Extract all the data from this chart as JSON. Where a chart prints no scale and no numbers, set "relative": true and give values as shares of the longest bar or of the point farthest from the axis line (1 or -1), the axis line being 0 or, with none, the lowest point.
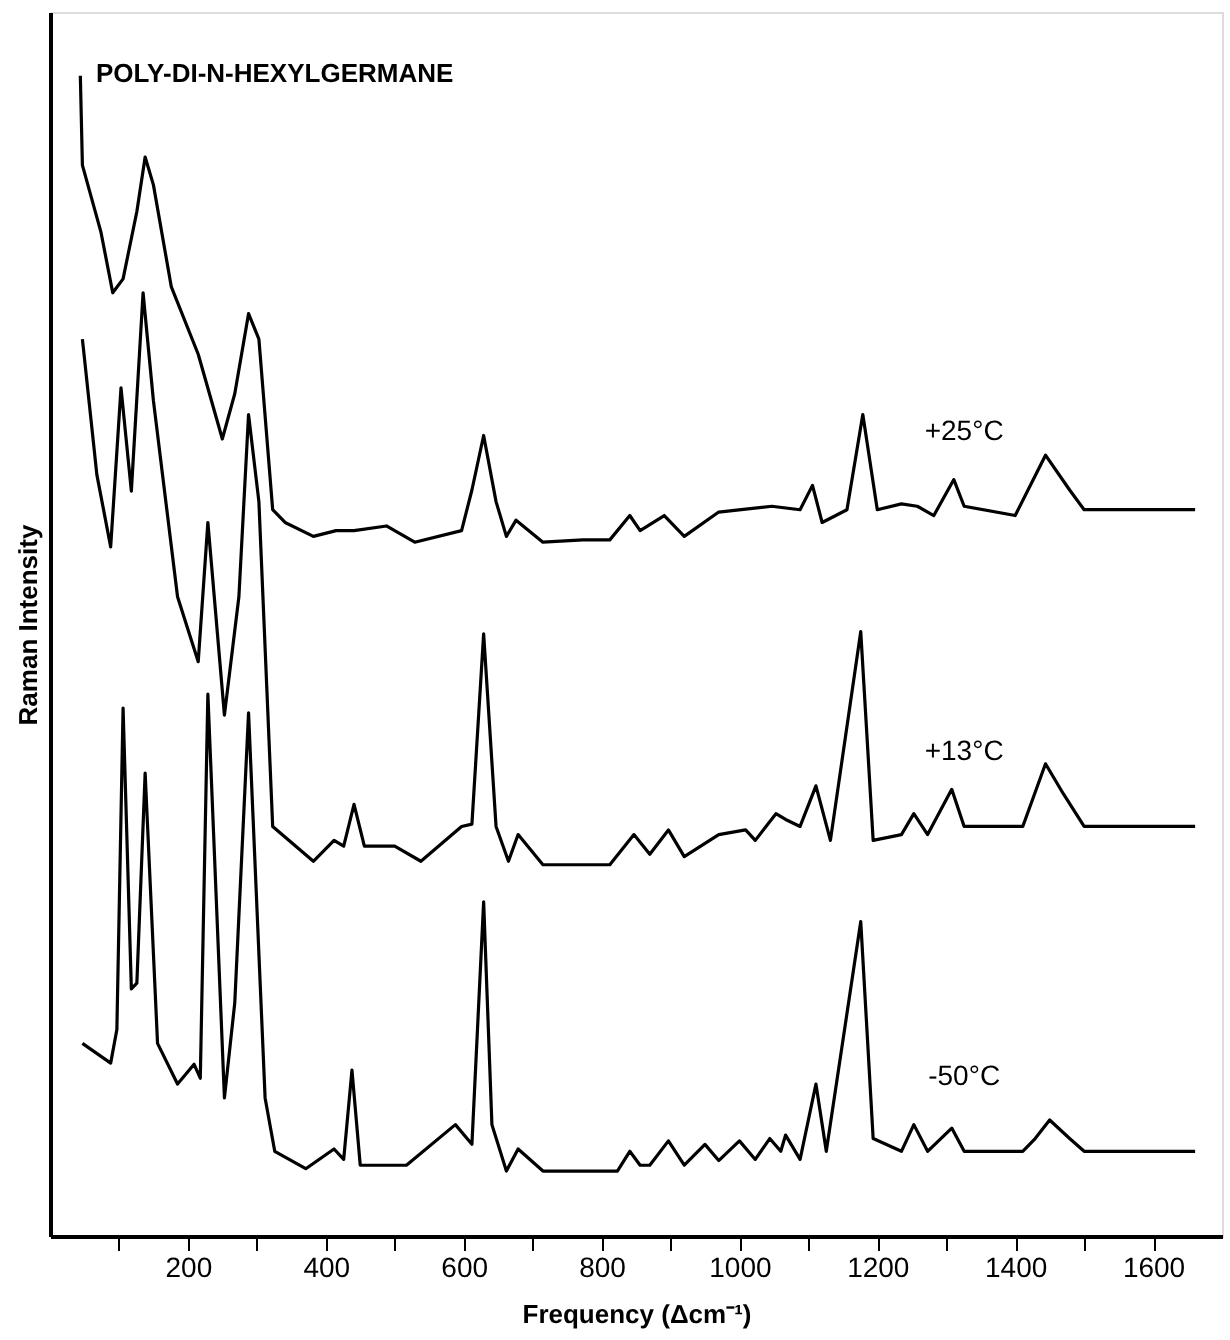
{
  "chart_data": {
    "type": "line",
    "title": "POLY-DI-N-HEXYLGERMANE",
    "xlabel": "Frequency (Δcm⁻¹)",
    "ylabel": "Raman Intensity",
    "relative": true,
    "grid": false,
    "marker": "none",
    "line_style": "solid",
    "xlim": [
      0,
      1700
    ],
    "xticks": [
      {
        "value": 100,
        "label": null
      },
      200,
      {
        "value": 300,
        "label": null
      },
      400,
      {
        "value": 500,
        "label": null
      },
      600,
      {
        "value": 700,
        "label": null
      },
      800,
      {
        "value": 900,
        "label": null
      },
      1000,
      {
        "value": 1100,
        "label": null
      },
      1200,
      {
        "value": 1300,
        "label": null
      },
      1400,
      {
        "value": 1500,
        "label": null
      },
      1600
    ],
    "series": [
      {
        "name": "+25°C",
        "color": "#000000",
        "x": [
          44,
          47,
          74,
          91,
          106,
          126,
          138,
          150,
          176,
          215,
          250,
          268,
          288,
          303,
          323,
          341,
          382,
          415,
          441,
          488,
          529,
          597,
          612,
          629,
          647,
          662,
          676,
          715,
          773,
          812,
          841,
          856,
          891,
          920,
          970,
          1047,
          1088,
          1106,
          1120,
          1156,
          1179,
          1200,
          1235,
          1258,
          1282,
          1311,
          1326,
          1400,
          1444,
          1479,
          1500,
          1661
        ],
        "values": [
          1.0,
          0.923,
          0.865,
          0.813,
          0.825,
          0.883,
          0.93,
          0.906,
          0.818,
          0.76,
          0.687,
          0.726,
          0.795,
          0.773,
          0.626,
          0.615,
          0.603,
          0.608,
          0.608,
          0.612,
          0.598,
          0.608,
          0.643,
          0.69,
          0.633,
          0.603,
          0.617,
          0.598,
          0.6,
          0.6,
          0.621,
          0.608,
          0.621,
          0.603,
          0.624,
          0.629,
          0.626,
          0.647,
          0.615,
          0.626,
          0.708,
          0.626,
          0.631,
          0.629,
          0.621,
          0.652,
          0.629,
          0.621,
          0.673,
          0.643,
          0.626,
          0.626
        ]
      },
      {
        "name": "+13°C",
        "color": "#000000",
        "x": [
          47,
          68,
          88,
          103,
          118,
          135,
          150,
          185,
          215,
          229,
          253,
          274,
          288,
          303,
          323,
          382,
          412,
          426,
          441,
          456,
          500,
          538,
          597,
          612,
          629,
          647,
          665,
          679,
          715,
          812,
          847,
          870,
          897,
          920,
          970,
          1009,
          1023,
          1053,
          1067,
          1088,
          1111,
          1132,
          1176,
          1194,
          1235,
          1253,
          1273,
          1308,
          1326,
          1411,
          1444,
          1470,
          1500,
          1661
        ],
        "values": [
          0.773,
          0.656,
          0.594,
          0.731,
          0.642,
          0.813,
          0.72,
          0.551,
          0.495,
          0.615,
          0.449,
          0.551,
          0.708,
          0.633,
          0.353,
          0.323,
          0.341,
          0.336,
          0.372,
          0.336,
          0.336,
          0.323,
          0.353,
          0.355,
          0.519,
          0.353,
          0.323,
          0.346,
          0.32,
          0.32,
          0.346,
          0.329,
          0.35,
          0.327,
          0.346,
          0.35,
          0.341,
          0.364,
          0.359,
          0.353,
          0.388,
          0.341,
          0.521,
          0.341,
          0.346,
          0.364,
          0.346,
          0.385,
          0.353,
          0.353,
          0.407,
          0.381,
          0.353,
          0.353
        ]
      },
      {
        "name": "-50°C",
        "color": "#000000",
        "x": [
          47,
          88,
          97,
          106,
          118,
          126,
          138,
          156,
          185,
          209,
          218,
          229,
          253,
          268,
          288,
          312,
          326,
          371,
          412,
          426,
          438,
          450,
          517,
          588,
          612,
          629,
          641,
          662,
          679,
          715,
          823,
          841,
          856,
          870,
          897,
          920,
          950,
          970,
          1000,
          1023,
          1044,
          1060,
          1067,
          1088,
          1111,
          1126,
          1176,
          1194,
          1235,
          1253,
          1273,
          1308,
          1326,
          1411,
          1429,
          1450,
          1479,
          1500,
          1661
        ],
        "values": [
          0.166,
          0.149,
          0.178,
          0.455,
          0.213,
          0.218,
          0.399,
          0.166,
          0.131,
          0.148,
          0.136,
          0.467,
          0.119,
          0.201,
          0.451,
          0.119,
          0.073,
          0.058,
          0.075,
          0.066,
          0.143,
          0.061,
          0.061,
          0.096,
          0.079,
          0.288,
          0.096,
          0.056,
          0.075,
          0.056,
          0.056,
          0.073,
          0.061,
          0.061,
          0.082,
          0.061,
          0.079,
          0.065,
          0.082,
          0.066,
          0.084,
          0.073,
          0.087,
          0.066,
          0.131,
          0.073,
          0.271,
          0.084,
          0.073,
          0.096,
          0.073,
          0.093,
          0.073,
          0.073,
          0.084,
          0.1,
          0.084,
          0.073,
          0.073
        ]
      }
    ]
  }
}
